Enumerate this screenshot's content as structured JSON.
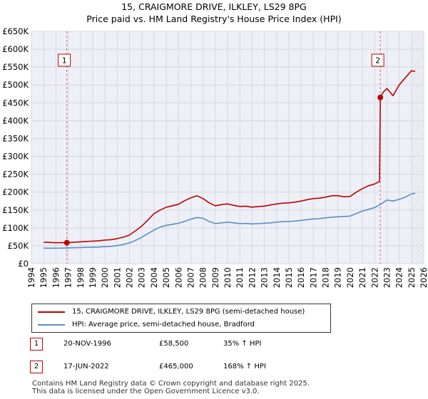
{
  "title_line1": "15, CRAIGMORE DRIVE, ILKLEY, LS29 8PG",
  "title_line2": "Price paid vs. HM Land Registry's House Price Index (HPI)",
  "colors": {
    "red": "#c00000",
    "blue": "#5b8fc9",
    "grid": "#d8d8d8",
    "plot_bg": "#eef0f8"
  },
  "chart_data": {
    "type": "line",
    "xlim": [
      1994,
      2026
    ],
    "ylim": [
      0,
      650000
    ],
    "y_ticks": [
      0,
      50000,
      100000,
      150000,
      200000,
      250000,
      300000,
      350000,
      400000,
      450000,
      500000,
      550000,
      600000,
      650000
    ],
    "y_tick_labels": [
      "£0",
      "£50K",
      "£100K",
      "£150K",
      "£200K",
      "£250K",
      "£300K",
      "£350K",
      "£400K",
      "£450K",
      "£500K",
      "£550K",
      "£600K",
      "£650K"
    ],
    "x_ticks": [
      1994,
      1995,
      1996,
      1997,
      1998,
      1999,
      2000,
      2001,
      2002,
      2003,
      2004,
      2005,
      2006,
      2007,
      2008,
      2009,
      2010,
      2011,
      2012,
      2013,
      2014,
      2015,
      2016,
      2017,
      2018,
      2019,
      2020,
      2021,
      2022,
      2023,
      2024,
      2025,
      2026
    ],
    "x_tick_labels": [
      "1994",
      "1995",
      "1996",
      "1997",
      "1998",
      "1999",
      "2000",
      "2001",
      "2002",
      "2003",
      "2004",
      "2005",
      "2006",
      "2007",
      "2008",
      "2009",
      "2010",
      "2011",
      "2012",
      "2013",
      "2014",
      "2015",
      "2016",
      "2017",
      "2018",
      "2019",
      "2020",
      "2021",
      "2022",
      "2023",
      "2024",
      "2025",
      "2026"
    ],
    "hatch_start": 2025.0,
    "series": [
      {
        "name": "15, CRAIGMORE DRIVE, ILKLEY, LS29 8PG (semi-detached house)",
        "color": "#c00000",
        "x": [
          1995.0,
          1995.5,
          1996.0,
          1996.5,
          1996.89,
          1997.5,
          1998.0,
          1998.5,
          1999.0,
          1999.5,
          2000.0,
          2000.5,
          2001.0,
          2001.5,
          2002.0,
          2002.5,
          2003.0,
          2003.5,
          2004.0,
          2004.5,
          2005.0,
          2005.5,
          2006.0,
          2006.5,
          2007.0,
          2007.5,
          2008.0,
          2008.5,
          2009.0,
          2009.5,
          2010.0,
          2010.5,
          2011.0,
          2011.5,
          2012.0,
          2012.5,
          2013.0,
          2013.5,
          2014.0,
          2014.5,
          2015.0,
          2015.5,
          2016.0,
          2016.5,
          2017.0,
          2017.5,
          2018.0,
          2018.5,
          2019.0,
          2019.5,
          2020.0,
          2020.5,
          2021.0,
          2021.5,
          2022.0,
          2022.4,
          2022.46,
          2022.7,
          2023.0,
          2023.5,
          2024.0,
          2024.5,
          2025.0,
          2025.3
        ],
        "y": [
          60000,
          59500,
          58500,
          59000,
          58500,
          60000,
          61000,
          62000,
          63000,
          64000,
          66000,
          67000,
          70000,
          74000,
          80000,
          92000,
          105000,
          122000,
          140000,
          150000,
          158000,
          162000,
          166000,
          176000,
          184000,
          190000,
          182000,
          170000,
          162000,
          165000,
          167000,
          163000,
          160000,
          161000,
          158000,
          160000,
          161000,
          164000,
          167000,
          169000,
          170000,
          172000,
          175000,
          179000,
          182000,
          183000,
          186000,
          190000,
          190000,
          187000,
          188000,
          200000,
          210000,
          218000,
          223000,
          230000,
          465000,
          480000,
          490000,
          470000,
          500000,
          520000,
          540000,
          538000
        ]
      },
      {
        "name": "HPI: Average price, semi-detached house, Bradford",
        "color": "#5b8fc9",
        "x": [
          1995.0,
          1995.5,
          1996.0,
          1996.5,
          1997.0,
          1997.5,
          1998.0,
          1998.5,
          1999.0,
          1999.5,
          2000.0,
          2000.5,
          2001.0,
          2001.5,
          2002.0,
          2002.5,
          2003.0,
          2003.5,
          2004.0,
          2004.5,
          2005.0,
          2005.5,
          2006.0,
          2006.5,
          2007.0,
          2007.5,
          2008.0,
          2008.5,
          2009.0,
          2009.5,
          2010.0,
          2010.5,
          2011.0,
          2011.5,
          2012.0,
          2012.5,
          2013.0,
          2013.5,
          2014.0,
          2014.5,
          2015.0,
          2015.5,
          2016.0,
          2016.5,
          2017.0,
          2017.5,
          2018.0,
          2018.5,
          2019.0,
          2019.5,
          2020.0,
          2020.5,
          2021.0,
          2021.5,
          2022.0,
          2022.5,
          2023.0,
          2023.5,
          2024.0,
          2024.5,
          2025.0,
          2025.3
        ],
        "y": [
          43500,
          43000,
          43300,
          43500,
          44000,
          44500,
          45000,
          45500,
          46000,
          46500,
          47500,
          48500,
          50500,
          53500,
          58000,
          65000,
          74000,
          84000,
          94000,
          102000,
          107000,
          110000,
          113000,
          118000,
          124000,
          129000,
          127000,
          118000,
          112000,
          114000,
          116000,
          114000,
          112000,
          112500,
          111000,
          112000,
          113000,
          114000,
          116000,
          117500,
          118000,
          119000,
          121000,
          123000,
          125000,
          126000,
          128000,
          130000,
          131000,
          132000,
          133000,
          140000,
          147000,
          152000,
          157000,
          166000,
          178000,
          175000,
          180000,
          186000,
          195000,
          197000
        ]
      }
    ],
    "markers": [
      {
        "label": "1",
        "x": 1996.89,
        "y": 58500
      },
      {
        "label": "2",
        "x": 2022.46,
        "y": 465000
      }
    ]
  },
  "legend": {
    "items": [
      {
        "label": "15, CRAIGMORE DRIVE, ILKLEY, LS29 8PG (semi-detached house)",
        "color": "#c00000"
      },
      {
        "label": "HPI: Average price, semi-detached house, Bradford",
        "color": "#5b8fc9"
      }
    ]
  },
  "transactions": [
    {
      "num": "1",
      "date": "20-NOV-1996",
      "price": "£58,500",
      "hpi": "35% ↑ HPI"
    },
    {
      "num": "2",
      "date": "17-JUN-2022",
      "price": "£465,000",
      "hpi": "168% ↑ HPI"
    }
  ],
  "footer": {
    "line1": "Contains HM Land Registry data © Crown copyright and database right 2025.",
    "line2": "This data is licensed under the Open Government Licence v3.0."
  }
}
